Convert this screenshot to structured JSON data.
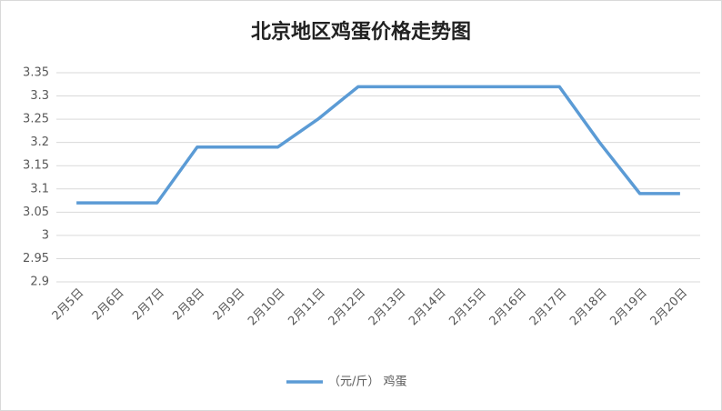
{
  "chart_data": {
    "type": "line",
    "title": "北京地区鸡蛋价格走势图",
    "categories": [
      "2月5日",
      "2月6日",
      "2月7日",
      "2月8日",
      "2月9日",
      "2月10日",
      "2月11日",
      "2月12日",
      "2月13日",
      "2月14日",
      "2月15日",
      "2月16日",
      "2月17日",
      "2月18日",
      "2月19日",
      "2月20日"
    ],
    "series": [
      {
        "name": "（元/斤） 鸡蛋",
        "color": "#5b9bd5",
        "values": [
          3.07,
          3.07,
          3.07,
          3.19,
          3.19,
          3.19,
          3.25,
          3.32,
          3.32,
          3.32,
          3.32,
          3.32,
          3.32,
          3.2,
          3.09,
          3.09
        ]
      }
    ],
    "ylim": [
      2.9,
      3.35
    ],
    "yticks": [
      2.9,
      2.95,
      3,
      3.05,
      3.1,
      3.15,
      3.2,
      3.25,
      3.3,
      3.35
    ],
    "grid": true,
    "legend": "bottom"
  }
}
